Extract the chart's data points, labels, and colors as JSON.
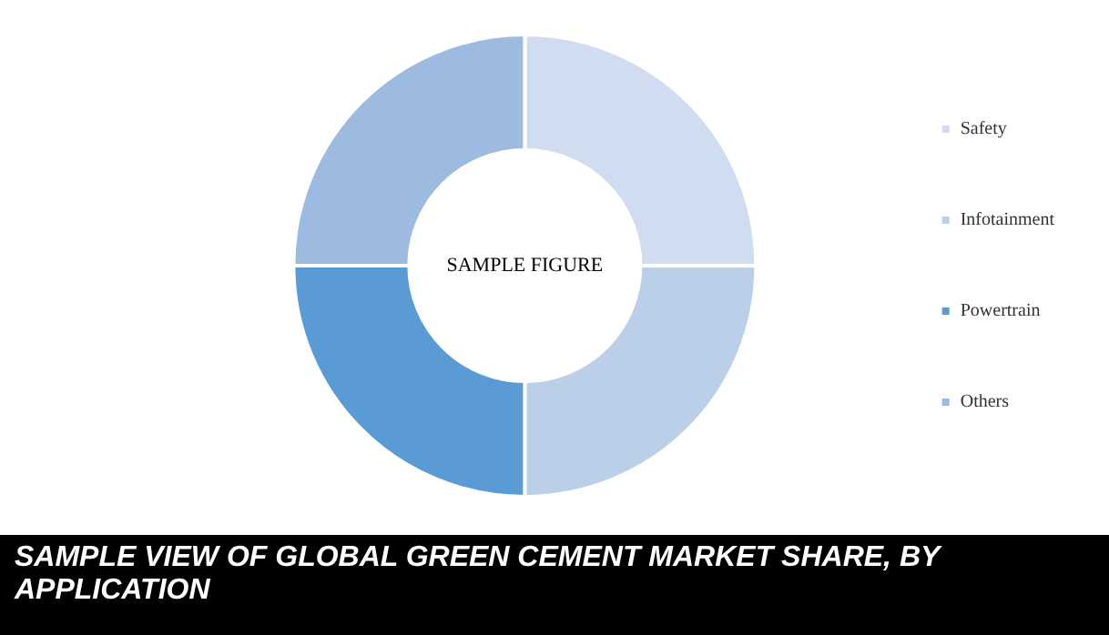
{
  "chart_data": {
    "type": "donut",
    "title": "SAMPLE VIEW OF GLOBAL GREEN CEMENT MARKET SHARE, BY APPLICATION",
    "categories": [
      "Safety",
      "Infotainment",
      "Powertrain",
      "Others"
    ],
    "values": [
      25,
      25,
      25,
      25
    ],
    "colors": [
      "#d0dcef",
      "#bccfe9",
      "#5b9bd5",
      "#9dbbe1"
    ],
    "legend": "right",
    "annotations": [
      "SAMPLE FIGURE"
    ]
  }
}
